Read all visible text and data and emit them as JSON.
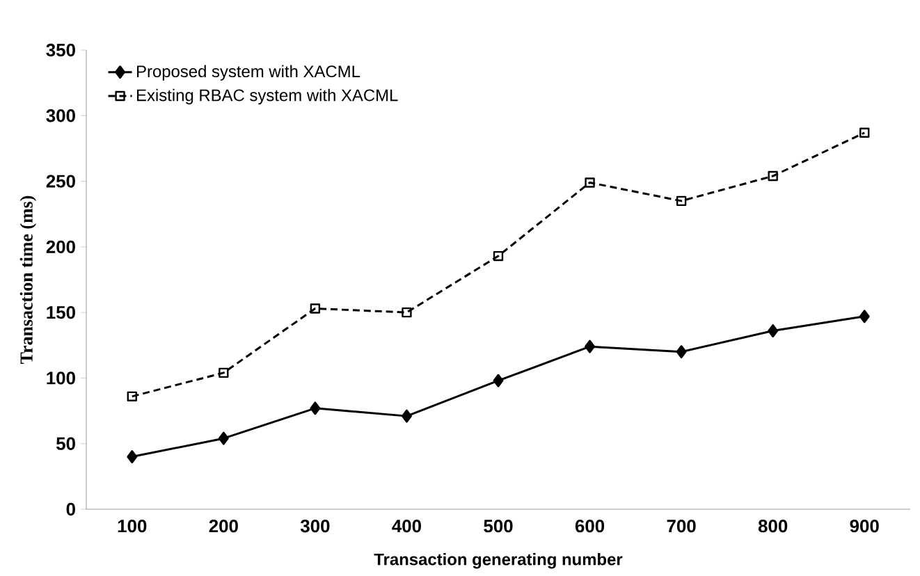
{
  "chart_data": {
    "type": "line",
    "xlabel": "Transaction generating number",
    "ylabel": "Transaction time (ms)",
    "categories": [
      "100",
      "200",
      "300",
      "400",
      "500",
      "600",
      "700",
      "800",
      "900"
    ],
    "series": [
      {
        "name": "Proposed system with XACML",
        "color": "#000000",
        "marker": "diamond",
        "line_style": "solid",
        "values": [
          40,
          54,
          77,
          71,
          98,
          124,
          120,
          136,
          147
        ]
      },
      {
        "name": "Existing RBAC system with XACML",
        "color": "#000000",
        "marker": "square",
        "line_style": "dashed",
        "values": [
          86,
          104,
          153,
          150,
          193,
          249,
          235,
          254,
          287
        ]
      }
    ],
    "ylim": [
      0,
      350
    ],
    "yticks": [
      0,
      50,
      100,
      150,
      200,
      250,
      300,
      350
    ],
    "grid": false,
    "legend": "top left"
  }
}
